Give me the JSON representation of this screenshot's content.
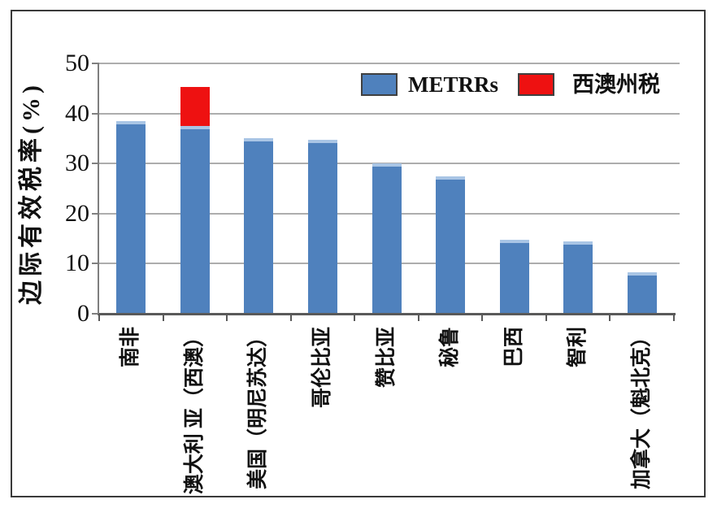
{
  "chart_data": {
    "type": "bar",
    "stacked": true,
    "ylabel": "边际有效税率(%)",
    "ylim": [
      0,
      50
    ],
    "yticks": [
      0,
      10,
      20,
      30,
      40,
      50
    ],
    "grid": true,
    "legend_position": "top-right-inside",
    "categories": [
      "南非",
      "澳大利 亚（西澳）",
      "美国（明尼苏达）",
      "哥伦比亚",
      "赞比亚",
      "秘鲁",
      "巴西",
      "智利",
      "加拿大（魁北克）"
    ],
    "series": [
      {
        "name": "METRRs",
        "color": "#4F81BD",
        "values": [
          38.5,
          37.5,
          35.0,
          34.7,
          30.0,
          27.5,
          14.7,
          14.5,
          8.3
        ]
      },
      {
        "name": "西澳州税",
        "color": "#EE1111",
        "values": [
          0,
          7.8,
          0,
          0,
          0,
          0,
          0,
          0,
          0
        ]
      }
    ]
  },
  "legend": {
    "items": [
      {
        "label": "METRRs",
        "color": "#4F81BD"
      },
      {
        "label": "西澳州税",
        "color": "#EE1111"
      }
    ]
  },
  "colors": {
    "bar_blue": "#4F81BD",
    "bar_blue_highlight": "#A9C5E5",
    "bar_red": "#EE1111",
    "gridline": "#ADADAD",
    "axis": "#595959",
    "frame_border": "#3A3A3A",
    "text": "#111111",
    "background": "#FFFFFF"
  }
}
